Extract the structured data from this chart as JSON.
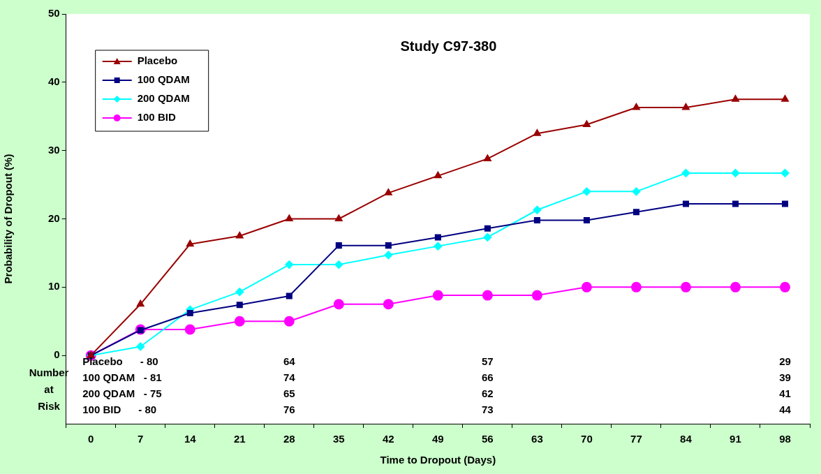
{
  "chart_data": {
    "type": "line",
    "title": "Study C97-380",
    "xlabel": "Time to Dropout (Days)",
    "ylabel": "Probability of Dropout (%)",
    "categories": [
      "0",
      "7",
      "14",
      "21",
      "28",
      "35",
      "42",
      "49",
      "56",
      "63",
      "70",
      "77",
      "84",
      "91",
      "98"
    ],
    "series": [
      {
        "name": "Placebo",
        "color": "#990000",
        "marker": "triangle",
        "values": [
          0,
          7.5,
          16.3,
          17.5,
          20,
          20,
          23.8,
          26.3,
          28.8,
          32.5,
          33.8,
          36.3,
          36.3,
          37.5,
          37.5
        ]
      },
      {
        "name": "100 QDAM",
        "color": "#000080",
        "marker": "square",
        "values": [
          0,
          3.7,
          6.2,
          7.4,
          8.7,
          16.1,
          16.1,
          17.3,
          18.6,
          19.8,
          19.8,
          21,
          22.2,
          22.2,
          22.2
        ]
      },
      {
        "name": "200 QDAM",
        "color": "#00ffff",
        "marker": "diamond",
        "values": [
          0,
          1.3,
          6.7,
          9.3,
          13.3,
          13.3,
          14.7,
          16,
          17.3,
          21.3,
          24,
          24,
          26.7,
          26.7,
          26.7
        ]
      },
      {
        "name": "100 BID",
        "color": "#ff00ff",
        "marker": "circle",
        "values": [
          0,
          3.8,
          3.8,
          5,
          5,
          7.5,
          7.5,
          8.8,
          8.8,
          8.8,
          10,
          10,
          10,
          10,
          10
        ]
      }
    ],
    "ylim": [
      -10,
      50
    ],
    "yticks": [
      0,
      10,
      20,
      30,
      40,
      50
    ],
    "grid": false,
    "legend": "top left",
    "line_style": "solid",
    "annotations": [
      "Number at Risk",
      "Placebo      - 80",
      "64",
      "57",
      "29",
      "100 QDAM   - 81",
      "74",
      "66",
      "39",
      "200 QDAM   - 75",
      "65",
      "62",
      "41",
      "100 BID      - 80",
      "76",
      "73",
      "44"
    ]
  }
}
